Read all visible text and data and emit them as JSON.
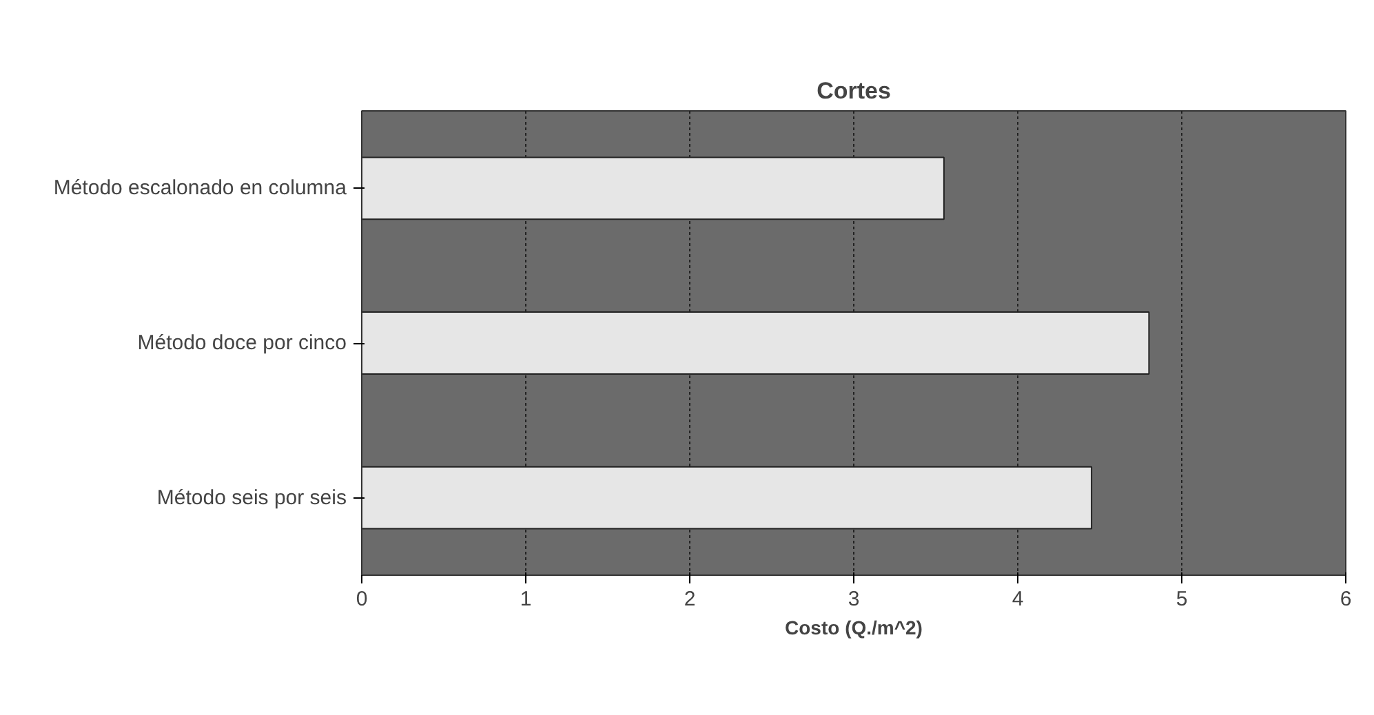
{
  "chart_data": {
    "type": "bar",
    "orientation": "horizontal",
    "title": "Cortes",
    "xlabel": "Costo (Q./m^2)",
    "categories": [
      "Método escalonado en columna",
      "Método doce por cinco",
      "Método seis por seis"
    ],
    "values": [
      3.55,
      4.8,
      4.45
    ],
    "color": "#e6e6e6",
    "xlim": [
      0,
      6
    ],
    "xticks": [
      0,
      1,
      2,
      3,
      4,
      5,
      6
    ],
    "grid": "x"
  }
}
